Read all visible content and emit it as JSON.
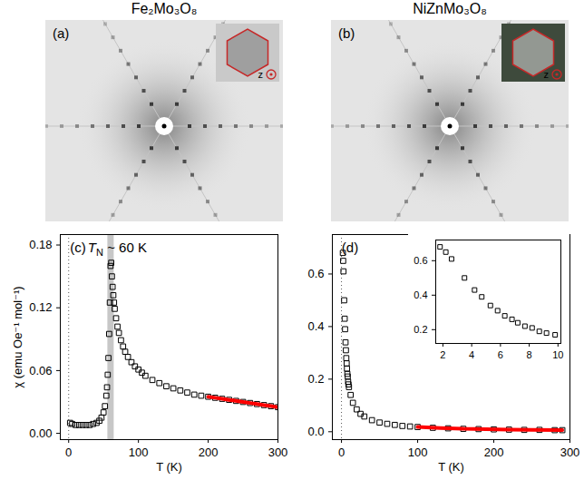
{
  "figure": {
    "panels": [
      {
        "title": "Fe₂Mo₃O₈",
        "label": "(a)",
        "inset_axis": "z"
      },
      {
        "title": "NiZnMo₃O₈",
        "label": "(b)",
        "inset_axis": "z"
      }
    ]
  },
  "chart_data": [
    {
      "type": "scatter",
      "panel_label": "(c)",
      "x_label": "T (K)",
      "y_label": "χ (emu Oe⁻¹ mol⁻¹)",
      "xlim": [
        -12,
        300
      ],
      "xticks": [
        0,
        100,
        200,
        300
      ],
      "ylim": [
        -0.006,
        0.19
      ],
      "yticks": [
        {
          "value": 0,
          "label": "0.00"
        },
        0.06,
        0.12,
        0.18
      ],
      "rule_x": 0,
      "band_x": 60,
      "annotation": {
        "text": "T",
        "subscript": "N",
        "suffix": " ~ 60 K"
      },
      "series": [
        {
          "type": "scatter",
          "marker": "square",
          "color": "#000000",
          "x": [
            2,
            5,
            10,
            15,
            20,
            25,
            30,
            35,
            40,
            44,
            47,
            50,
            52,
            54,
            55,
            56,
            57,
            58,
            59,
            60,
            61,
            62,
            63,
            64,
            65,
            66,
            68,
            70,
            72,
            75,
            78,
            81,
            85,
            90,
            95,
            100,
            105,
            110,
            120,
            130,
            140,
            150,
            160,
            170,
            180,
            190,
            200,
            210,
            220,
            230,
            240,
            250,
            260,
            270,
            280,
            290,
            300
          ],
          "values": [
            0.01,
            0.009,
            0.008,
            0.008,
            0.008,
            0.008,
            0.008,
            0.009,
            0.01,
            0.012,
            0.015,
            0.02,
            0.026,
            0.036,
            0.044,
            0.056,
            0.072,
            0.095,
            0.125,
            0.16,
            0.163,
            0.15,
            0.14,
            0.132,
            0.125,
            0.119,
            0.11,
            0.102,
            0.096,
            0.089,
            0.083,
            0.078,
            0.073,
            0.068,
            0.064,
            0.061,
            0.058,
            0.055,
            0.051,
            0.048,
            0.045,
            0.043,
            0.041,
            0.039,
            0.037,
            0.036,
            0.035,
            0.034,
            0.033,
            0.032,
            0.031,
            0.03,
            0.029,
            0.028,
            0.027,
            0.026,
            0.025
          ]
        },
        {
          "type": "line",
          "line_style": "solid",
          "color": "#ff0000",
          "x": [
            200,
            210,
            220,
            230,
            240,
            250,
            260,
            270,
            280,
            290,
            300
          ],
          "values": [
            0.035,
            0.034,
            0.033,
            0.032,
            0.031,
            0.03,
            0.029,
            0.028,
            0.027,
            0.026,
            0.025
          ]
        }
      ]
    },
    {
      "type": "scatter",
      "panel_label": "(d)",
      "x_label": "T (K)",
      "xlim": [
        -12,
        300
      ],
      "xticks": [
        0,
        100,
        200,
        300
      ],
      "ylim": [
        -0.03,
        0.75
      ],
      "yticks": [
        {
          "value": 0,
          "label": "0.0"
        },
        0.2,
        0.4,
        0.6
      ],
      "rule_x": 0,
      "series": [
        {
          "type": "scatter",
          "marker": "square",
          "color": "#000000",
          "x": [
            1.8,
            2.2,
            2.6,
            3.5,
            4.2,
            4.7,
            5.3,
            5.8,
            6.3,
            6.8,
            7.2,
            7.7,
            8.2,
            8.7,
            9.2,
            9.8,
            12,
            15,
            20,
            25,
            30,
            40,
            50,
            60,
            70,
            80,
            90,
            100,
            120,
            140,
            160,
            180,
            200,
            220,
            240,
            260,
            280,
            290
          ],
          "values": [
            0.68,
            0.65,
            0.61,
            0.5,
            0.43,
            0.39,
            0.34,
            0.31,
            0.28,
            0.26,
            0.24,
            0.22,
            0.21,
            0.19,
            0.18,
            0.17,
            0.14,
            0.11,
            0.085,
            0.068,
            0.058,
            0.044,
            0.035,
            0.03,
            0.026,
            0.022,
            0.02,
            0.018,
            0.015,
            0.013,
            0.011,
            0.01,
            0.009,
            0.008,
            0.007,
            0.007,
            0.006,
            0.006
          ]
        },
        {
          "type": "line",
          "line_style": "solid",
          "color": "#ff0000",
          "x": [
            100,
            130,
            160,
            190,
            220,
            250,
            290
          ],
          "values": [
            0.018,
            0.014,
            0.011,
            0.01,
            0.008,
            0.007,
            0.006
          ]
        }
      ]
    },
    {
      "type": "scatter",
      "inset_of": "(d)",
      "xlim": [
        1.5,
        10.2
      ],
      "xticks": [
        2,
        4,
        6,
        8,
        10
      ],
      "ylim": [
        0.12,
        0.72
      ],
      "yticks": [
        0.2,
        0.4,
        0.6
      ],
      "series": [
        {
          "type": "scatter",
          "marker": "square",
          "color": "#000000",
          "x": [
            1.8,
            2.2,
            2.6,
            3.5,
            4.2,
            4.7,
            5.3,
            5.8,
            6.3,
            6.8,
            7.2,
            7.7,
            8.2,
            8.7,
            9.2,
            9.8
          ],
          "values": [
            0.68,
            0.65,
            0.61,
            0.5,
            0.43,
            0.39,
            0.34,
            0.31,
            0.28,
            0.26,
            0.24,
            0.22,
            0.21,
            0.19,
            0.18,
            0.17
          ]
        }
      ]
    }
  ]
}
